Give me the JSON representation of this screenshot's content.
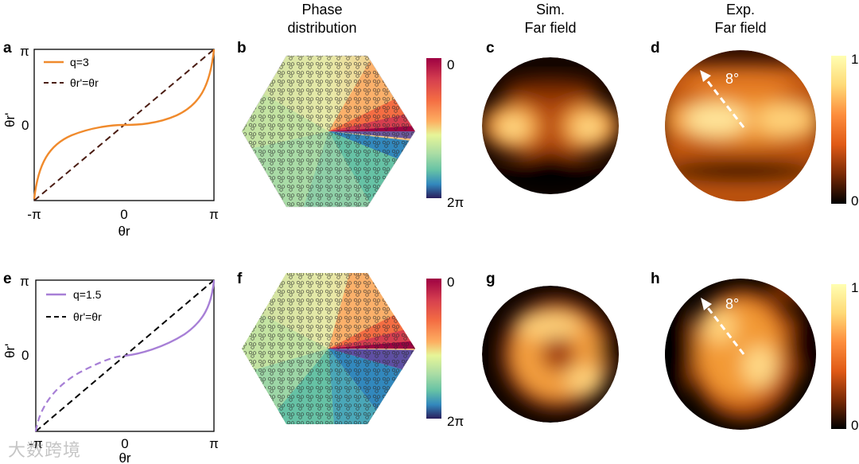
{
  "headers": {
    "phase": [
      "Phase",
      "distribution"
    ],
    "sim": [
      "Sim.",
      "Far field"
    ],
    "exp": [
      "Exp.",
      "Far field"
    ]
  },
  "panel_letters": [
    "a",
    "b",
    "c",
    "d",
    "e",
    "f",
    "g",
    "h"
  ],
  "plots": [
    {
      "id": "a",
      "xticks": [
        "-π",
        "0",
        "π"
      ],
      "yticks": [
        "π",
        "0"
      ],
      "ylabel": "θr'",
      "xlabel": "θr",
      "legend": [
        {
          "label": "q=3",
          "color": "#f08a2c",
          "style": "solid"
        },
        {
          "label": "θr'=θr",
          "color": "#4a1c12",
          "style": "dashed"
        }
      ]
    },
    {
      "id": "e",
      "xticks": [
        "-π",
        "0",
        "π"
      ],
      "yticks": [
        "π",
        "0"
      ],
      "ylabel": "θr'",
      "xlabel": "θr",
      "legend": [
        {
          "label": "q=1.5",
          "color": "#a77fd6",
          "style": "solid"
        },
        {
          "label": "θr'=θr",
          "color": "#000000",
          "style": "dashed"
        }
      ]
    }
  ],
  "colorbars": {
    "phase_top": {
      "top": "0",
      "bottom": "2π"
    },
    "phase_bottom": {
      "top": "0",
      "bottom": "2π"
    },
    "intensity_top": {
      "top": "1",
      "bottom": "0"
    },
    "intensity_bottom": {
      "top": "1",
      "bottom": "0"
    }
  },
  "annotations": {
    "angle_top": "8°",
    "angle_bottom": "8°"
  },
  "watermark": "大数跨境",
  "colors": {
    "orange_curve": "#f08a2c",
    "purple_curve": "#a77fd6",
    "dark_dashed": "#4a1c12"
  }
}
